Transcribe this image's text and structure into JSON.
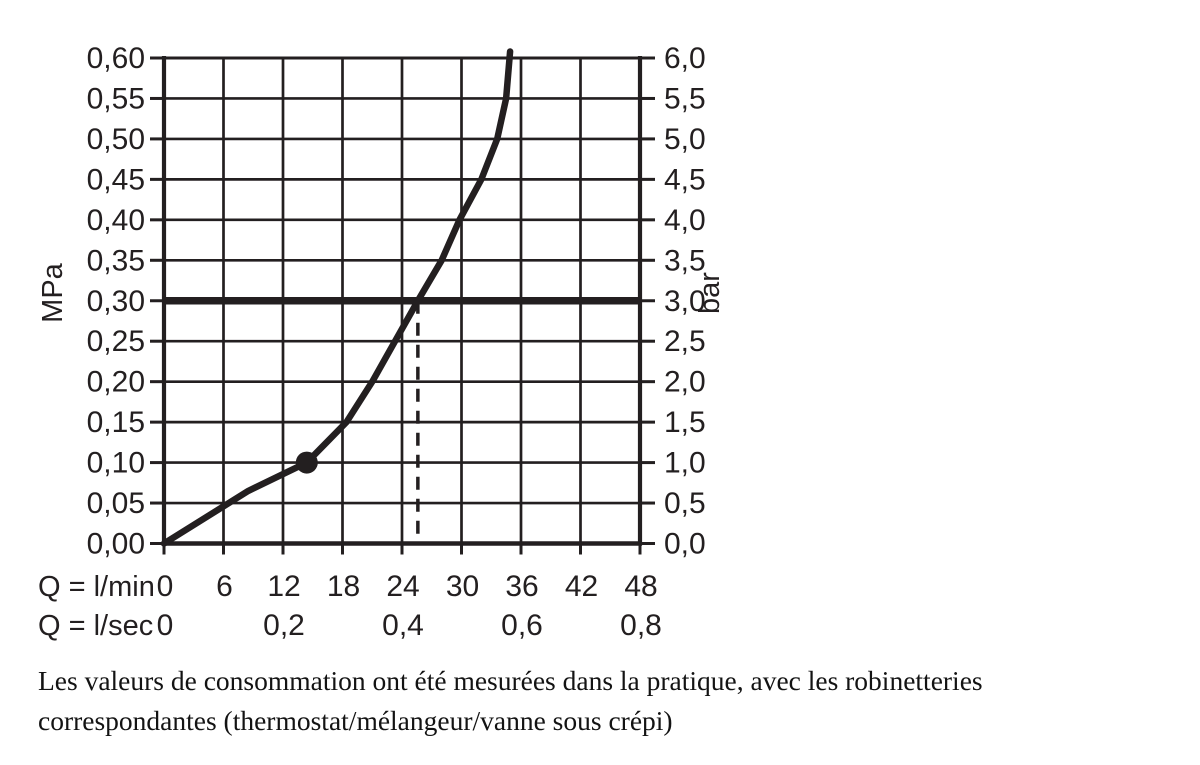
{
  "page": {
    "background": "#ffffff",
    "ink_color": "#231f20"
  },
  "caption": {
    "line1": "Les valeurs de consommation ont été mesurées dans la pratique, avec les robinetteries",
    "line2": "correspondantes (thermostat/mélangeur/vanne sous crépi)"
  },
  "chart_data": {
    "type": "line",
    "title": "",
    "grid": true,
    "x_axis": {
      "row1_label": "Q = l/min",
      "row1_ticks": [
        "0",
        "6",
        "12",
        "18",
        "24",
        "30",
        "36",
        "42",
        "48"
      ],
      "row1_values": [
        0,
        6,
        12,
        18,
        24,
        30,
        36,
        42,
        48
      ],
      "row2_label": "Q = l/sec",
      "row2_ticks": [
        {
          "text": "0",
          "at": 0
        },
        {
          "text": "0,2",
          "at": 12
        },
        {
          "text": "0,4",
          "at": 24
        },
        {
          "text": "0,6",
          "at": 36
        },
        {
          "text": "0,8",
          "at": 48
        }
      ],
      "range": [
        0,
        48
      ]
    },
    "y_left": {
      "unit": "MPa",
      "ticks": [
        "0,60",
        "0,55",
        "0,50",
        "0,45",
        "0,40",
        "0,35",
        "0,30",
        "0,25",
        "0,20",
        "0,15",
        "0,10",
        "0,05",
        "0,00"
      ],
      "values": [
        0.6,
        0.55,
        0.5,
        0.45,
        0.4,
        0.35,
        0.3,
        0.25,
        0.2,
        0.15,
        0.1,
        0.05,
        0.0
      ],
      "range": [
        0,
        0.6
      ]
    },
    "y_right": {
      "unit": "bar",
      "ticks": [
        "6,0",
        "5,5",
        "5,0",
        "4,5",
        "4,0",
        "3,5",
        "3,0",
        "2,5",
        "2,0",
        "1,5",
        "1,0",
        "0,5",
        "0,0"
      ],
      "values": [
        6.0,
        5.5,
        5.0,
        4.5,
        4.0,
        3.5,
        3.0,
        2.5,
        2.0,
        1.5,
        1.0,
        0.5,
        0.0
      ],
      "range": [
        0,
        6
      ]
    },
    "series": [
      {
        "name": "flow-pressure-curve",
        "points": [
          [
            0,
            0.0
          ],
          [
            8.5,
            0.065
          ],
          [
            14.4,
            0.1
          ],
          [
            18.4,
            0.15
          ],
          [
            21.0,
            0.2
          ],
          [
            23.3,
            0.25
          ],
          [
            25.6,
            0.3
          ],
          [
            28.0,
            0.35
          ],
          [
            29.8,
            0.4
          ],
          [
            32.0,
            0.45
          ],
          [
            33.6,
            0.5
          ],
          [
            34.5,
            0.55
          ],
          [
            34.9,
            0.608
          ]
        ]
      }
    ],
    "marker_point": {
      "q": 14.4,
      "p": 0.1
    },
    "reference_line_mpa": 0.3,
    "dashed_drop_q": 25.6
  }
}
